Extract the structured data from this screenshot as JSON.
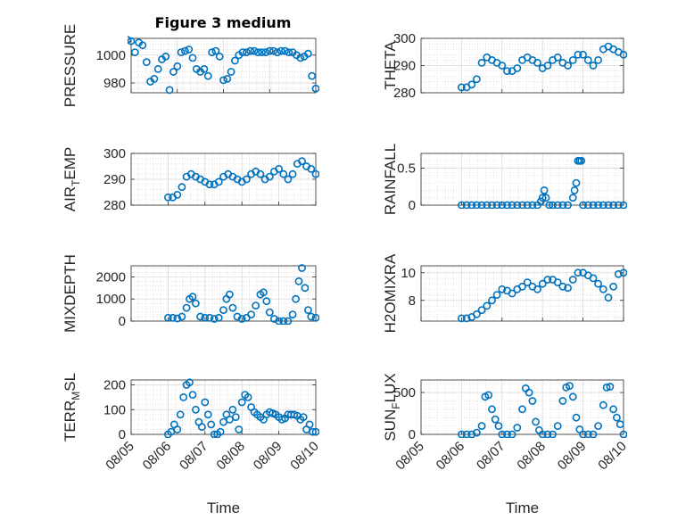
{
  "figure": {
    "title": "Figure 3 medium",
    "marker_color": "#0072bd"
  },
  "chart_data": [
    {
      "type": "scatter",
      "id": "pressure",
      "ylabel": "PRESSURE",
      "ylim": [
        973,
        1012
      ],
      "yticks": [
        980,
        1000
      ],
      "xlim": [
        "08/06",
        "08/10"
      ],
      "xticks": [],
      "x": [
        "08/05 22:00",
        "08/06 00:00",
        "08/06 02:00",
        "08/06 04:00",
        "08/06 06:00",
        "08/06 08:00",
        "08/06 10:00",
        "08/06 12:00",
        "08/06 14:00",
        "08/06 16:00",
        "08/06 18:00",
        "08/06 20:00",
        "08/06 22:00",
        "08/07 00:00",
        "08/07 02:00",
        "08/07 04:00",
        "08/07 06:00",
        "08/07 08:00",
        "08/07 10:00",
        "08/07 12:00",
        "08/07 14:00",
        "08/07 16:00",
        "08/07 18:00",
        "08/07 20:00",
        "08/07 22:00",
        "08/08 00:00",
        "08/08 02:00",
        "08/08 04:00",
        "08/08 06:00",
        "08/08 08:00",
        "08/08 10:00",
        "08/08 12:00",
        "08/08 14:00",
        "08/08 16:00",
        "08/08 18:00",
        "08/08 20:00",
        "08/08 22:00",
        "08/09 00:00",
        "08/09 02:00",
        "08/09 04:00",
        "08/09 06:00",
        "08/09 08:00",
        "08/09 10:00",
        "08/09 12:00",
        "08/09 14:00",
        "08/09 16:00",
        "08/09 18:00",
        "08/09 20:00",
        "08/09 22:00",
        "08/10 00:00"
      ],
      "y": [
        1011,
        1010,
        1002,
        1009,
        1007,
        995,
        981,
        983,
        990,
        997,
        999,
        975,
        988,
        992,
        1002,
        1003,
        1004,
        998,
        990,
        988,
        990,
        985,
        1002,
        1003,
        999,
        982,
        983,
        988,
        996,
        1000,
        1002,
        1002,
        1003,
        1003,
        1002,
        1002,
        1002,
        1003,
        1003,
        1002,
        1003,
        1003,
        1002,
        1002,
        1000,
        998,
        999,
        1001,
        985,
        976
      ]
    },
    {
      "type": "scatter",
      "id": "theta",
      "ylabel": "THETA",
      "ylim": [
        280,
        300
      ],
      "yticks": [
        280,
        290,
        300
      ],
      "xlim": [
        "08/05",
        "08/10"
      ],
      "xticks": [],
      "x": [
        "08/06 00:00",
        "08/06 03:00",
        "08/06 06:00",
        "08/06 09:00",
        "08/06 12:00",
        "08/06 15:00",
        "08/06 18:00",
        "08/06 21:00",
        "08/07 00:00",
        "08/07 03:00",
        "08/07 06:00",
        "08/07 09:00",
        "08/07 12:00",
        "08/07 15:00",
        "08/07 18:00",
        "08/07 21:00",
        "08/08 00:00",
        "08/08 03:00",
        "08/08 06:00",
        "08/08 09:00",
        "08/08 12:00",
        "08/08 15:00",
        "08/08 18:00",
        "08/08 21:00",
        "08/09 00:00",
        "08/09 03:00",
        "08/09 06:00",
        "08/09 09:00",
        "08/09 12:00",
        "08/09 15:00",
        "08/09 18:00",
        "08/09 21:00",
        "08/10 00:00"
      ],
      "y": [
        282,
        282,
        283,
        285,
        291,
        293,
        292,
        291,
        290,
        288,
        288,
        289,
        292,
        293,
        292,
        291,
        289,
        290,
        292,
        293,
        291,
        290,
        292,
        294,
        294,
        292,
        290,
        292,
        296,
        297,
        296,
        295,
        294
      ]
    },
    {
      "type": "scatter",
      "id": "air_temp",
      "ylabel": "AIR",
      "ylabel_sub": "T",
      "ylabel_rest": "EMP",
      "ylim": [
        280,
        300
      ],
      "yticks": [
        280,
        290,
        300
      ],
      "xlim": [
        "08/05",
        "08/10"
      ],
      "xticks": [],
      "x": [
        "08/06 00:00",
        "08/06 03:00",
        "08/06 06:00",
        "08/06 09:00",
        "08/06 12:00",
        "08/06 15:00",
        "08/06 18:00",
        "08/06 21:00",
        "08/07 00:00",
        "08/07 03:00",
        "08/07 06:00",
        "08/07 09:00",
        "08/07 12:00",
        "08/07 15:00",
        "08/07 18:00",
        "08/07 21:00",
        "08/08 00:00",
        "08/08 03:00",
        "08/08 06:00",
        "08/08 09:00",
        "08/08 12:00",
        "08/08 15:00",
        "08/08 18:00",
        "08/08 21:00",
        "08/09 00:00",
        "08/09 03:00",
        "08/09 06:00",
        "08/09 09:00",
        "08/09 12:00",
        "08/09 15:00",
        "08/09 18:00",
        "08/09 21:00",
        "08/10 00:00"
      ],
      "y": [
        283,
        283,
        284,
        287,
        291,
        292,
        291,
        290,
        289,
        288,
        288,
        289,
        291,
        292,
        291,
        290,
        289,
        290,
        292,
        293,
        292,
        290,
        291,
        293,
        294,
        292,
        290,
        292,
        296,
        297,
        295,
        294,
        292
      ]
    },
    {
      "type": "scatter",
      "id": "rainfall",
      "ylabel": "RAINFALL",
      "ylim": [
        0,
        0.7
      ],
      "yticks": [
        0,
        0.5
      ],
      "xlim": [
        "08/05",
        "08/10"
      ],
      "xticks": [],
      "x": [
        "08/06 00:00",
        "08/06 03:00",
        "08/06 06:00",
        "08/06 09:00",
        "08/06 12:00",
        "08/06 15:00",
        "08/06 18:00",
        "08/06 21:00",
        "08/07 00:00",
        "08/07 03:00",
        "08/07 06:00",
        "08/07 09:00",
        "08/07 12:00",
        "08/07 15:00",
        "08/07 18:00",
        "08/07 21:00",
        "08/07 23:00",
        "08/08 00:00",
        "08/08 01:00",
        "08/08 02:00",
        "08/08 04:00",
        "08/08 06:00",
        "08/08 09:00",
        "08/08 12:00",
        "08/08 15:00",
        "08/08 18:00",
        "08/08 19:00",
        "08/08 20:00",
        "08/08 21:00",
        "08/08 22:00",
        "08/08 23:00",
        "08/09 00:00",
        "08/09 03:00",
        "08/09 06:00",
        "08/09 09:00",
        "08/09 12:00",
        "08/09 15:00",
        "08/09 18:00",
        "08/09 21:00",
        "08/10 00:00"
      ],
      "y": [
        0,
        0,
        0,
        0,
        0,
        0,
        0,
        0,
        0,
        0,
        0,
        0,
        0,
        0,
        0,
        0,
        0.05,
        0.1,
        0.2,
        0.1,
        0,
        0,
        0,
        0,
        0,
        0.1,
        0.2,
        0.3,
        0.6,
        0.6,
        0.6,
        0,
        0,
        0,
        0,
        0,
        0,
        0,
        0,
        0
      ]
    },
    {
      "type": "scatter",
      "id": "mixdepth",
      "ylabel": "MIXDEPTH",
      "ylim": [
        0,
        2500
      ],
      "yticks": [
        0,
        1000,
        2000
      ],
      "xlim": [
        "08/05",
        "08/10"
      ],
      "xticks": [],
      "x": [
        "08/06 00:00",
        "08/06 03:00",
        "08/06 06:00",
        "08/06 09:00",
        "08/06 12:00",
        "08/06 14:00",
        "08/06 16:00",
        "08/06 18:00",
        "08/06 21:00",
        "08/07 00:00",
        "08/07 03:00",
        "08/07 06:00",
        "08/07 09:00",
        "08/07 12:00",
        "08/07 14:00",
        "08/07 16:00",
        "08/07 18:00",
        "08/07 21:00",
        "08/08 00:00",
        "08/08 03:00",
        "08/08 06:00",
        "08/08 09:00",
        "08/08 12:00",
        "08/08 14:00",
        "08/08 16:00",
        "08/08 18:00",
        "08/08 21:00",
        "08/09 00:00",
        "08/09 03:00",
        "08/09 06:00",
        "08/09 09:00",
        "08/09 11:00",
        "08/09 13:00",
        "08/09 15:00",
        "08/09 17:00",
        "08/09 19:00",
        "08/09 21:00",
        "08/10 00:00"
      ],
      "y": [
        150,
        150,
        120,
        200,
        600,
        1000,
        1100,
        800,
        200,
        150,
        150,
        100,
        150,
        500,
        1000,
        1200,
        600,
        200,
        100,
        150,
        300,
        700,
        1200,
        1300,
        900,
        400,
        100,
        0,
        0,
        0,
        300,
        1000,
        1800,
        2400,
        1500,
        500,
        200,
        150
      ]
    },
    {
      "type": "scatter",
      "id": "h2omixra",
      "ylabel": "H2OMIXRA",
      "ylim": [
        6.5,
        10.5
      ],
      "yticks": [
        8,
        10
      ],
      "xlim": [
        "08/05",
        "08/10"
      ],
      "xticks": [],
      "x": [
        "08/06 00:00",
        "08/06 03:00",
        "08/06 06:00",
        "08/06 09:00",
        "08/06 12:00",
        "08/06 15:00",
        "08/06 18:00",
        "08/06 21:00",
        "08/07 00:00",
        "08/07 03:00",
        "08/07 06:00",
        "08/07 09:00",
        "08/07 12:00",
        "08/07 15:00",
        "08/07 18:00",
        "08/07 21:00",
        "08/08 00:00",
        "08/08 03:00",
        "08/08 06:00",
        "08/08 09:00",
        "08/08 12:00",
        "08/08 15:00",
        "08/08 18:00",
        "08/08 21:00",
        "08/09 00:00",
        "08/09 03:00",
        "08/09 06:00",
        "08/09 09:00",
        "08/09 12:00",
        "08/09 15:00",
        "08/09 18:00",
        "08/09 21:00",
        "08/10 00:00"
      ],
      "y": [
        6.7,
        6.7,
        6.8,
        7.0,
        7.3,
        7.6,
        8.0,
        8.4,
        8.8,
        8.7,
        8.5,
        8.8,
        9.0,
        9.3,
        9.0,
        8.8,
        9.2,
        9.5,
        9.5,
        9.3,
        9.0,
        8.9,
        9.5,
        10.0,
        10.0,
        9.8,
        9.6,
        9.2,
        8.8,
        8.2,
        9.0,
        9.9,
        10.0
      ]
    },
    {
      "type": "scatter",
      "id": "terr_msl",
      "ylabel": "TERR",
      "ylabel_sub": "M",
      "ylabel_rest": "SL",
      "ylim": [
        0,
        220
      ],
      "yticks": [
        0,
        100,
        200
      ],
      "xlim": [
        "08/05",
        "08/10"
      ],
      "xticks": [
        "08/05",
        "08/06",
        "08/07",
        "08/08",
        "08/09",
        "08/10"
      ],
      "xlabel": "Time",
      "x": [
        "08/06 00:00",
        "08/06 02:00",
        "08/06 04:00",
        "08/06 06:00",
        "08/06 08:00",
        "08/06 10:00",
        "08/06 12:00",
        "08/06 14:00",
        "08/06 16:00",
        "08/06 18:00",
        "08/06 20:00",
        "08/06 22:00",
        "08/07 00:00",
        "08/07 02:00",
        "08/07 04:00",
        "08/07 06:00",
        "08/07 08:00",
        "08/07 10:00",
        "08/07 12:00",
        "08/07 14:00",
        "08/07 16:00",
        "08/07 18:00",
        "08/07 20:00",
        "08/07 22:00",
        "08/08 00:00",
        "08/08 02:00",
        "08/08 04:00",
        "08/08 06:00",
        "08/08 08:00",
        "08/08 10:00",
        "08/08 12:00",
        "08/08 14:00",
        "08/08 16:00",
        "08/08 18:00",
        "08/08 20:00",
        "08/08 22:00",
        "08/09 00:00",
        "08/09 02:00",
        "08/09 04:00",
        "08/09 06:00",
        "08/09 08:00",
        "08/09 10:00",
        "08/09 12:00",
        "08/09 14:00",
        "08/09 16:00",
        "08/09 18:00",
        "08/09 20:00",
        "08/09 22:00",
        "08/10 00:00"
      ],
      "y": [
        0,
        10,
        40,
        20,
        80,
        150,
        200,
        210,
        160,
        100,
        50,
        30,
        130,
        80,
        40,
        0,
        0,
        10,
        50,
        80,
        60,
        100,
        70,
        20,
        130,
        160,
        150,
        110,
        90,
        80,
        70,
        60,
        80,
        90,
        85,
        80,
        70,
        60,
        65,
        80,
        80,
        80,
        75,
        60,
        70,
        20,
        40,
        10,
        10
      ]
    },
    {
      "type": "scatter",
      "id": "sun_flux",
      "ylabel": "SUN",
      "ylabel_sub": "F",
      "ylabel_rest": "LUX",
      "ylim": [
        0,
        650
      ],
      "yticks": [
        0,
        500
      ],
      "xlim": [
        "08/05",
        "08/10"
      ],
      "xticks": [
        "08/05",
        "08/06",
        "08/07",
        "08/08",
        "08/09",
        "08/10"
      ],
      "xlabel": "Time",
      "x": [
        "08/06 00:00",
        "08/06 03:00",
        "08/06 06:00",
        "08/06 09:00",
        "08/06 12:00",
        "08/06 14:00",
        "08/06 16:00",
        "08/06 18:00",
        "08/06 20:00",
        "08/06 22:00",
        "08/07 00:00",
        "08/07 03:00",
        "08/07 06:00",
        "08/07 09:00",
        "08/07 12:00",
        "08/07 14:00",
        "08/07 16:00",
        "08/07 18:00",
        "08/07 20:00",
        "08/07 22:00",
        "08/08 00:00",
        "08/08 03:00",
        "08/08 06:00",
        "08/08 09:00",
        "08/08 12:00",
        "08/08 14:00",
        "08/08 16:00",
        "08/08 18:00",
        "08/08 20:00",
        "08/08 22:00",
        "08/09 00:00",
        "08/09 03:00",
        "08/09 06:00",
        "08/09 09:00",
        "08/09 12:00",
        "08/09 14:00",
        "08/09 16:00",
        "08/09 18:00",
        "08/09 20:00",
        "08/09 22:00",
        "08/10 00:00"
      ],
      "y": [
        0,
        0,
        0,
        20,
        100,
        450,
        470,
        300,
        180,
        100,
        0,
        0,
        0,
        80,
        300,
        550,
        500,
        400,
        150,
        50,
        0,
        0,
        0,
        100,
        400,
        560,
        580,
        450,
        200,
        60,
        0,
        0,
        0,
        100,
        350,
        560,
        570,
        300,
        200,
        120,
        0
      ]
    }
  ]
}
